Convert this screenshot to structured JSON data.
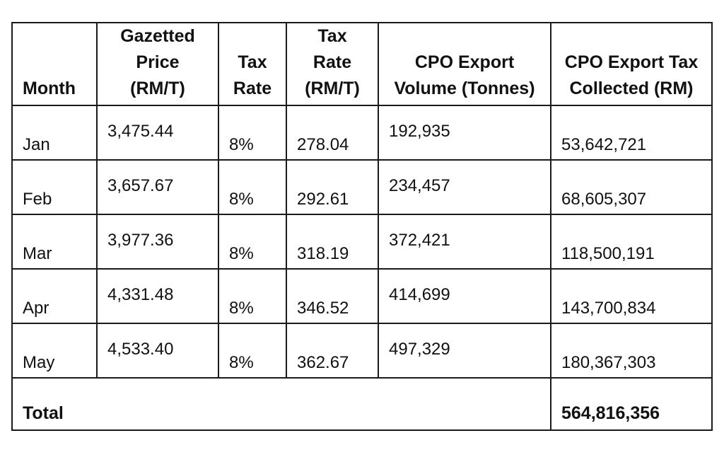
{
  "headers": {
    "month": [
      "Month"
    ],
    "gazetted_price": [
      "Gazetted",
      "Price",
      "(RM/T)"
    ],
    "tax_rate": [
      "Tax",
      "Rate"
    ],
    "tax_rate_rm": [
      "Tax",
      "Rate",
      "(RM/T)"
    ],
    "export_volume": [
      "CPO Export",
      "Volume (Tonnes)"
    ],
    "tax_collected": [
      "CPO Export Tax",
      "Collected (RM)"
    ]
  },
  "rows": [
    {
      "month": "Jan",
      "gazetted_price": "3,475.44",
      "tax_rate": "8%",
      "tax_rate_rm": "278.04",
      "export_volume": "192,935",
      "tax_collected": "53,642,721"
    },
    {
      "month": "Feb",
      "gazetted_price": "3,657.67",
      "tax_rate": "8%",
      "tax_rate_rm": "292.61",
      "export_volume": "234,457",
      "tax_collected": "68,605,307"
    },
    {
      "month": "Mar",
      "gazetted_price": "3,977.36",
      "tax_rate": "8%",
      "tax_rate_rm": "318.19",
      "export_volume": "372,421",
      "tax_collected": "118,500,191"
    },
    {
      "month": "Apr",
      "gazetted_price": "4,331.48",
      "tax_rate": "8%",
      "tax_rate_rm": "346.52",
      "export_volume": "414,699",
      "tax_collected": "143,700,834"
    },
    {
      "month": "May",
      "gazetted_price": "4,533.40",
      "tax_rate": "8%",
      "tax_rate_rm": "362.67",
      "export_volume": "497,329",
      "tax_collected": "180,367,303"
    }
  ],
  "total": {
    "label": "Total",
    "value": "564,816,356"
  }
}
